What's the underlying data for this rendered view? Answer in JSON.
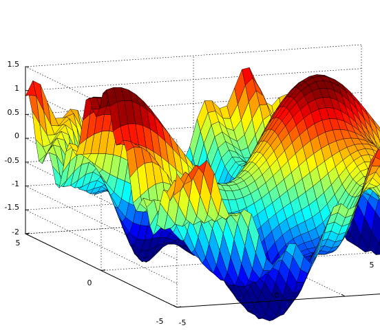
{
  "chart_data": {
    "type": "surface",
    "title": "",
    "xlabel": "",
    "ylabel": "",
    "zlabel": "",
    "xlim": [
      -5,
      5
    ],
    "ylim": [
      -5,
      5
    ],
    "zlim": [
      -2,
      1.5
    ],
    "x_ticks": [
      "-5",
      "0",
      "5"
    ],
    "y_ticks": [
      "-5",
      "0",
      "5"
    ],
    "z_ticks": [
      "-2",
      "-1.5",
      "-1",
      "-0.5",
      "0",
      "0.5",
      "1",
      "1.5"
    ],
    "grid": true,
    "box": true,
    "colormap": "jet",
    "colormap_colors": [
      "#00008f",
      "#0000ff",
      "#00ffff",
      "#ffff00",
      "#ff0000",
      "#800000"
    ],
    "edge_color": "#000000",
    "grid_resolution": 45,
    "surface_model": "z = sin(x) + cos(y) + sin(x*y)/3 - 0.4"
  }
}
